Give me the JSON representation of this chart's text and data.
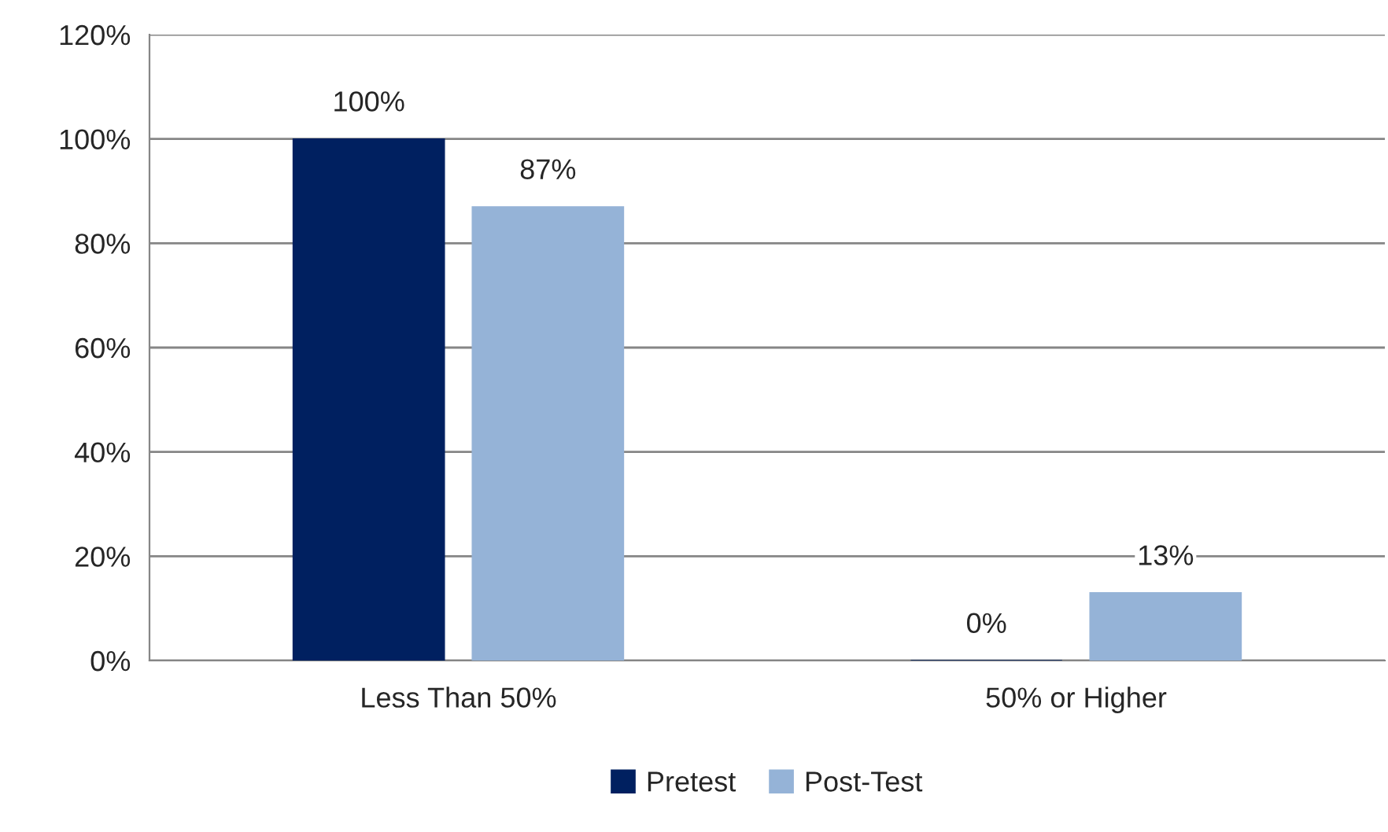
{
  "chart_data": {
    "type": "bar",
    "categories": [
      "Less Than 50%",
      "50% or Higher"
    ],
    "series": [
      {
        "name": "Pretest",
        "color": "#002060",
        "values": [
          100,
          0
        ],
        "value_labels": [
          "100%",
          "0%"
        ]
      },
      {
        "name": "Post-Test",
        "color": "#95b3d7",
        "values": [
          87,
          13
        ],
        "value_labels": [
          "87%",
          "13%"
        ]
      }
    ],
    "ylim": [
      0,
      120
    ],
    "yticks": [
      {
        "value": 0,
        "label": "0%"
      },
      {
        "value": 20,
        "label": "20%"
      },
      {
        "value": 40,
        "label": "40%"
      },
      {
        "value": 60,
        "label": "60%"
      },
      {
        "value": 80,
        "label": "80%"
      },
      {
        "value": 100,
        "label": "100%"
      },
      {
        "value": 120,
        "label": "120%"
      }
    ],
    "grid": "y",
    "legend": "bottom"
  }
}
